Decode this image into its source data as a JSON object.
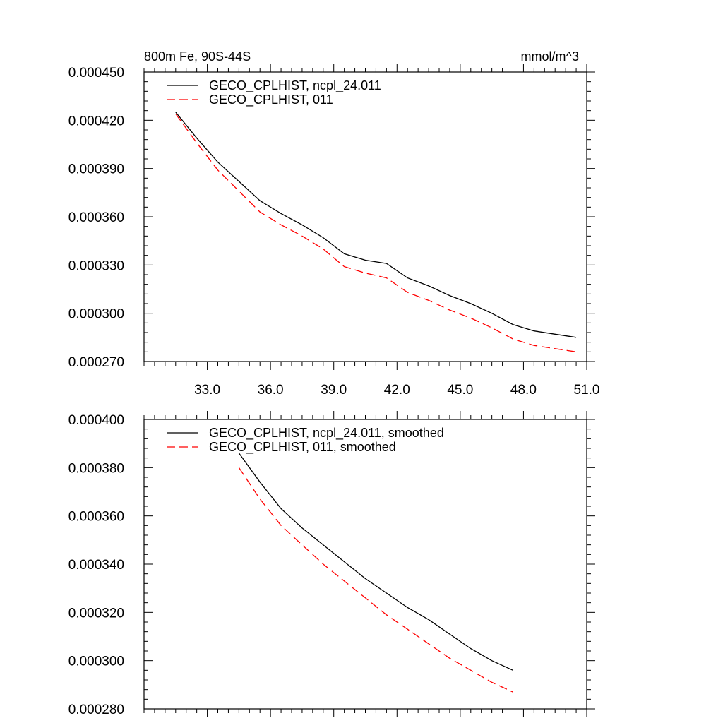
{
  "chart_data": [
    {
      "type": "line",
      "title_left": "800m Fe, 90S-44S",
      "title_right": "mmol/m^3",
      "x": [
        31.5,
        32.5,
        33.5,
        34.5,
        35.5,
        36.5,
        37.5,
        38.5,
        39.5,
        40.5,
        41.5,
        42.5,
        43.5,
        44.5,
        45.5,
        46.5,
        47.5,
        48.5,
        49.5,
        50.5
      ],
      "series": [
        {
          "name": "GECO_CPLHIST, ncpl_24.011",
          "color": "#000000",
          "dash": "solid",
          "values": [
            0.000425,
            0.000409,
            0.000394,
            0.000382,
            0.00037,
            0.000362,
            0.000355,
            0.000347,
            0.000337,
            0.000333,
            0.000331,
            0.000322,
            0.000317,
            0.000311,
            0.000306,
            0.0003,
            0.000293,
            0.000289,
            0.000287,
            0.000285
          ]
        },
        {
          "name": "GECO_CPLHIST, 011",
          "color": "#ff0000",
          "dash": "dashed",
          "values": [
            0.000424,
            0.000406,
            0.000389,
            0.000376,
            0.000363,
            0.000355,
            0.000348,
            0.00034,
            0.000329,
            0.000325,
            0.000322,
            0.000313,
            0.000308,
            0.000302,
            0.000297,
            0.000291,
            0.000284,
            0.00028,
            0.000278,
            0.000276
          ]
        }
      ],
      "xlim": [
        30.0,
        51.0
      ],
      "ylim": [
        0.00027,
        0.00045
      ],
      "xticks": [
        "33.0",
        "36.0",
        "39.0",
        "42.0",
        "45.0",
        "48.0",
        "51.0"
      ],
      "yticks": [
        "0.000270",
        "0.000300",
        "0.000330",
        "0.000360",
        "0.000390",
        "0.000420",
        "0.000450"
      ],
      "legend_position": "top-left"
    },
    {
      "type": "line",
      "x": [
        34.5,
        35.5,
        36.5,
        37.5,
        38.5,
        39.5,
        40.5,
        41.5,
        42.5,
        43.5,
        44.5,
        45.5,
        46.5,
        47.5
      ],
      "series": [
        {
          "name": "GECO_CPLHIST, ncpl_24.011, smoothed",
          "color": "#000000",
          "dash": "solid",
          "values": [
            0.000386,
            0.000374,
            0.000363,
            0.000355,
            0.000348,
            0.000341,
            0.000334,
            0.000328,
            0.000322,
            0.000317,
            0.000311,
            0.000305,
            0.0003,
            0.000296
          ]
        },
        {
          "name": "GECO_CPLHIST, 011, smoothed",
          "color": "#ff0000",
          "dash": "dashed",
          "values": [
            0.00038,
            0.000367,
            0.000356,
            0.000348,
            0.00034,
            0.000333,
            0.000326,
            0.000319,
            0.000313,
            0.000307,
            0.000301,
            0.000296,
            0.000291,
            0.000287
          ]
        }
      ],
      "xlim": [
        30.0,
        51.0
      ],
      "ylim": [
        0.00028,
        0.0004
      ],
      "yticks": [
        "0.000280",
        "0.000300",
        "0.000320",
        "0.000340",
        "0.000360",
        "0.000380",
        "0.000400"
      ],
      "legend_position": "top-left"
    }
  ]
}
